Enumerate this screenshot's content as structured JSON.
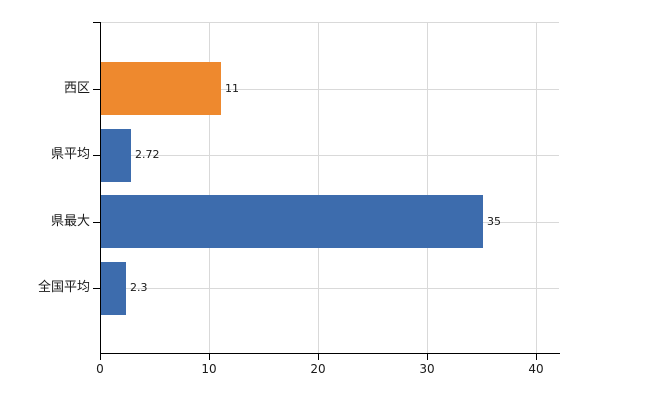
{
  "chart_data": {
    "type": "bar",
    "orientation": "horizontal",
    "title": "",
    "xlabel": "",
    "ylabel": "",
    "categories": [
      "西区",
      "県平均",
      "県最大",
      "全国平均"
    ],
    "values": [
      11,
      2.72,
      35,
      2.3
    ],
    "value_labels": [
      "11",
      "2.72",
      "35",
      "2.3"
    ],
    "bar_colors": [
      "#EE892E",
      "#3D6CAD",
      "#3D6CAD",
      "#3D6CAD"
    ],
    "x_ticks": [
      0,
      10,
      20,
      30,
      40
    ],
    "x_tick_labels": [
      "0",
      "10",
      "20",
      "30",
      "40"
    ],
    "xlim": [
      0,
      42
    ],
    "grid": true,
    "legend": "none",
    "colors": {
      "gridline": "#d9d9d9",
      "axis": "#000000",
      "text": "#1a1a1a",
      "background": "#ffffff"
    }
  }
}
